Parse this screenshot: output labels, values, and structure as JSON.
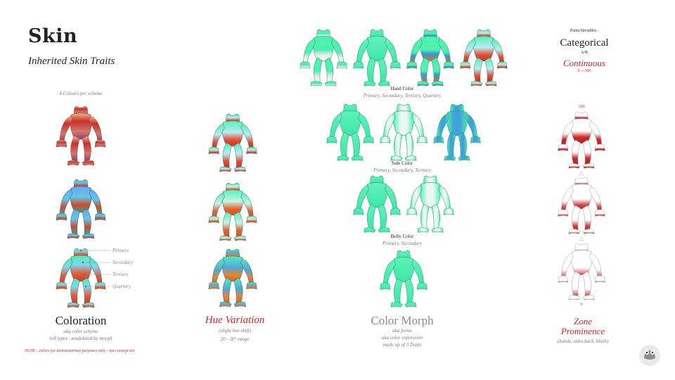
{
  "header": {
    "title": "Skin",
    "subtitle": "Inherited Skin Traits"
  },
  "coloration": {
    "note_top": "4 Colours per scheme",
    "title": "Coloration",
    "desc": [
      "aka color scheme",
      "6-8 types - modulated by morph"
    ],
    "callouts": [
      "Primary",
      "Secondary",
      "Tertiary",
      "Quartary"
    ]
  },
  "hue": {
    "title": "Hue Variation",
    "desc": [
      "(slight hue shift)",
      "20 - 30° range"
    ]
  },
  "morph": {
    "title": "Color Morph",
    "desc": [
      "aka forms",
      "aka color expression",
      "made up of 3 Traits"
    ],
    "hand": {
      "label": "Hand Color",
      "sub": "Primary, Secondary, Tertiary, Quartary"
    },
    "side": {
      "label": "Side Color",
      "sub": "Primary, Secondary, Tertiary"
    },
    "belly": {
      "label": "Belly Color",
      "sub": "Primary, Secondary"
    }
  },
  "traits": {
    "heading": "Traits/Variables :",
    "categorical": "Categorical",
    "ab": "A/B",
    "continuous": "Continuous",
    "range": "0 ->100"
  },
  "zone": {
    "top_value": "100",
    "bottom_value": "0",
    "title": [
      "Zone",
      "Prominence"
    ],
    "desc": "(hands, sides,back, blush)"
  },
  "note": "NOTE : colors for demonstartion purposes only - not concept art",
  "colors": {
    "teal": "#4ff0b0",
    "red": "#c8242a",
    "grey": "#8a8a8a"
  }
}
